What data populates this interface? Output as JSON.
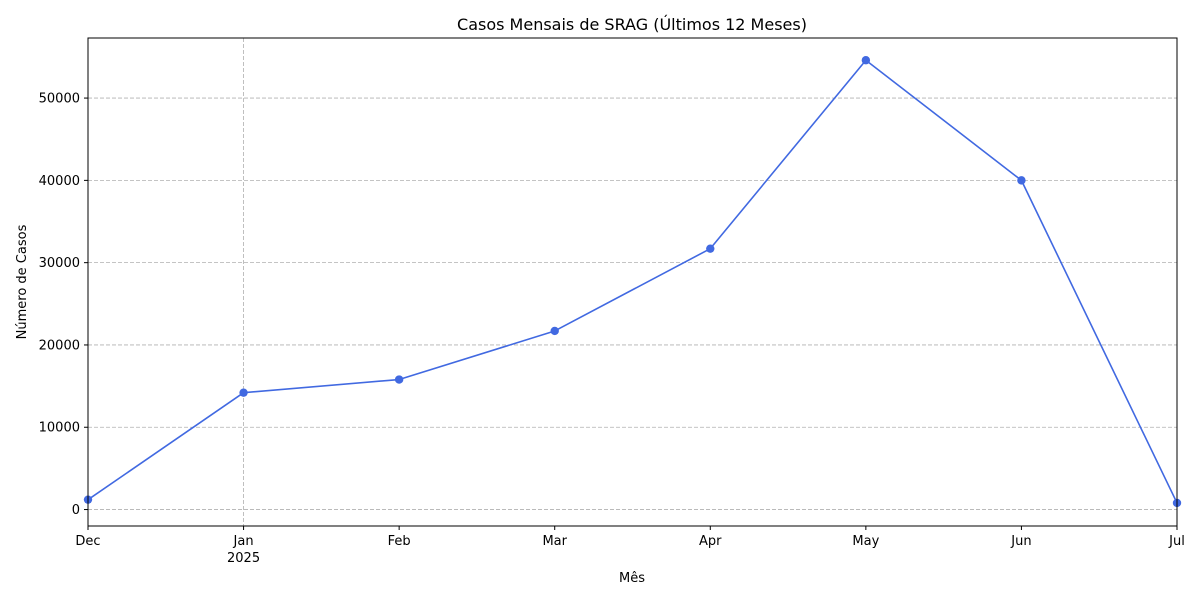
{
  "chart_data": {
    "type": "line",
    "title": "Casos Mensais de SRAG (Últimos 12 Meses)",
    "xlabel": "Mês",
    "ylabel": "Número de Casos",
    "x": [
      "2024-12",
      "2025-01",
      "2025-02",
      "2025-03",
      "2025-04",
      "2025-05",
      "2025-06",
      "2025-07"
    ],
    "x_tick_labels": [
      "Dec",
      "Jan",
      "Feb",
      "Mar",
      "Apr",
      "May",
      "Jun",
      "Jul"
    ],
    "x_tick_sublabels": [
      "",
      "2025",
      "",
      "",
      "",
      "",
      "",
      ""
    ],
    "y_ticks": [
      0,
      10000,
      20000,
      30000,
      40000,
      50000
    ],
    "ylim": [
      -2000,
      57300
    ],
    "series": [
      {
        "values": [
          1200,
          14200,
          15800,
          21700,
          31700,
          54600,
          40000,
          800
        ],
        "color": "#4169e1",
        "marker": "circle"
      }
    ],
    "grid": true,
    "grid_style": "dashed",
    "legend": "none"
  }
}
